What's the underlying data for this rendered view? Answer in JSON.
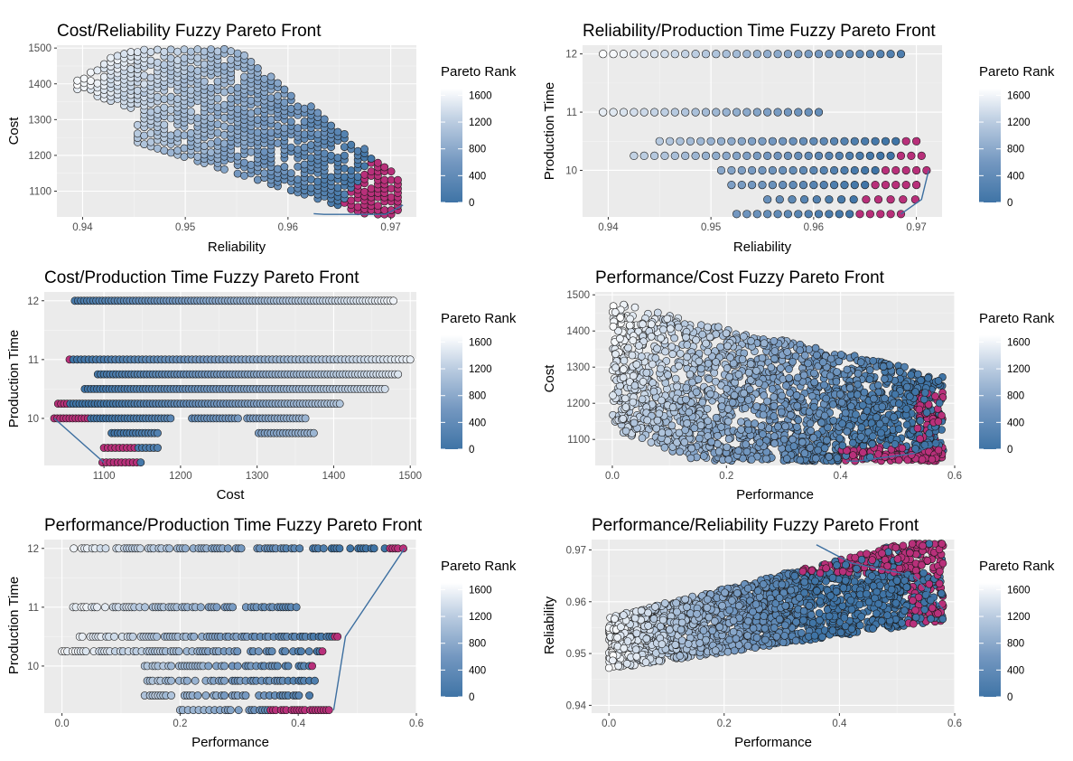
{
  "colors": {
    "panel_bg": "#ebebeb",
    "grid_major": "#ffffff",
    "point_outline": "#1a1a1a",
    "pareto_point": "#b8307a",
    "front_line": "#3d6fa0",
    "rank_low": "#3f74a6",
    "rank_high": "#ffffff"
  },
  "legend": {
    "title": "Pareto Rank",
    "ticks": [
      0,
      400,
      800,
      1200,
      1600
    ],
    "range": [
      0,
      1700
    ]
  },
  "chart_data": [
    {
      "type": "scatter",
      "title": "Cost/Reliability Fuzzy Pareto Front",
      "xlabel": "Reliability",
      "ylabel": "Cost",
      "xlim": [
        0.9375,
        0.9725
      ],
      "ylim": [
        1028,
        1508
      ],
      "xticks": [
        0.94,
        0.95,
        0.96,
        0.97
      ],
      "yticks": [
        1100,
        1200,
        1300,
        1400,
        1500
      ],
      "grid": true,
      "legend_position": "right",
      "pareto_front_line": [
        [
          0.9625,
          1037
        ],
        [
          0.9635,
          1035
        ],
        [
          0.9695,
          1035
        ],
        [
          0.9712,
          1061
        ]
      ]
    },
    {
      "type": "scatter",
      "title": "Reliability/Production Time Fuzzy Pareto Front",
      "xlabel": "Reliability",
      "ylabel": "Production Time",
      "xlim": [
        0.9375,
        0.9725
      ],
      "ylim": [
        9.2,
        12.15
      ],
      "xticks": [
        0.94,
        0.95,
        0.96,
        0.97
      ],
      "yticks": [
        10,
        11,
        12
      ],
      "grid": true,
      "legend_position": "right",
      "pareto_front_line": [
        [
          0.9685,
          9.25
        ],
        [
          0.9705,
          9.5
        ],
        [
          0.9712,
          10
        ]
      ]
    },
    {
      "type": "scatter",
      "title": "Cost/Production Time Fuzzy Pareto Front",
      "xlabel": "Cost",
      "ylabel": "Production Time",
      "xlim": [
        1022,
        1508
      ],
      "ylim": [
        9.2,
        12.15
      ],
      "xticks": [
        1100,
        1200,
        1300,
        1400,
        1500
      ],
      "yticks": [
        10,
        11,
        12
      ],
      "grid": true,
      "legend_position": "right",
      "pareto_front_line": [
        [
          1035,
          10
        ],
        [
          1100,
          9.25
        ]
      ]
    },
    {
      "type": "scatter",
      "title": "Performance/Cost Fuzzy Pareto Front",
      "xlabel": "Performance",
      "ylabel": "Cost",
      "xlim": [
        -0.03,
        0.6
      ],
      "ylim": [
        1028,
        1508
      ],
      "xticks": [
        0.0,
        0.2,
        0.4,
        0.6
      ],
      "yticks": [
        1100,
        1200,
        1300,
        1400,
        1500
      ],
      "grid": true,
      "legend_position": "right",
      "pareto_front_line": [
        [
          0.41,
          1040
        ],
        [
          0.43,
          1040
        ],
        [
          0.53,
          1062
        ],
        [
          0.58,
          1100
        ]
      ]
    },
    {
      "type": "scatter",
      "title": "Performance/Production Time Fuzzy Pareto Front",
      "xlabel": "Performance",
      "ylabel": "Production Time",
      "xlim": [
        -0.03,
        0.6
      ],
      "ylim": [
        9.2,
        12.15
      ],
      "xticks": [
        0.0,
        0.2,
        0.4,
        0.6
      ],
      "yticks": [
        10,
        11,
        12
      ],
      "grid": true,
      "legend_position": "right",
      "pareto_front_line": [
        [
          0.46,
          9.25
        ],
        [
          0.48,
          10.5
        ],
        [
          0.58,
          12
        ]
      ]
    },
    {
      "type": "scatter",
      "title": "Performance/Reliability Fuzzy Pareto Front",
      "xlabel": "Performance",
      "ylabel": "Reliability",
      "xlim": [
        -0.03,
        0.6
      ],
      "ylim": [
        0.9385,
        0.972
      ],
      "xticks": [
        0.0,
        0.2,
        0.4,
        0.6
      ],
      "yticks": [
        0.94,
        0.95,
        0.96,
        0.97
      ],
      "grid": true,
      "legend_position": "right",
      "pareto_front_line": [
        [
          0.36,
          0.971
        ],
        [
          0.42,
          0.9675
        ],
        [
          0.53,
          0.965
        ],
        [
          0.58,
          0.9585
        ]
      ]
    }
  ]
}
